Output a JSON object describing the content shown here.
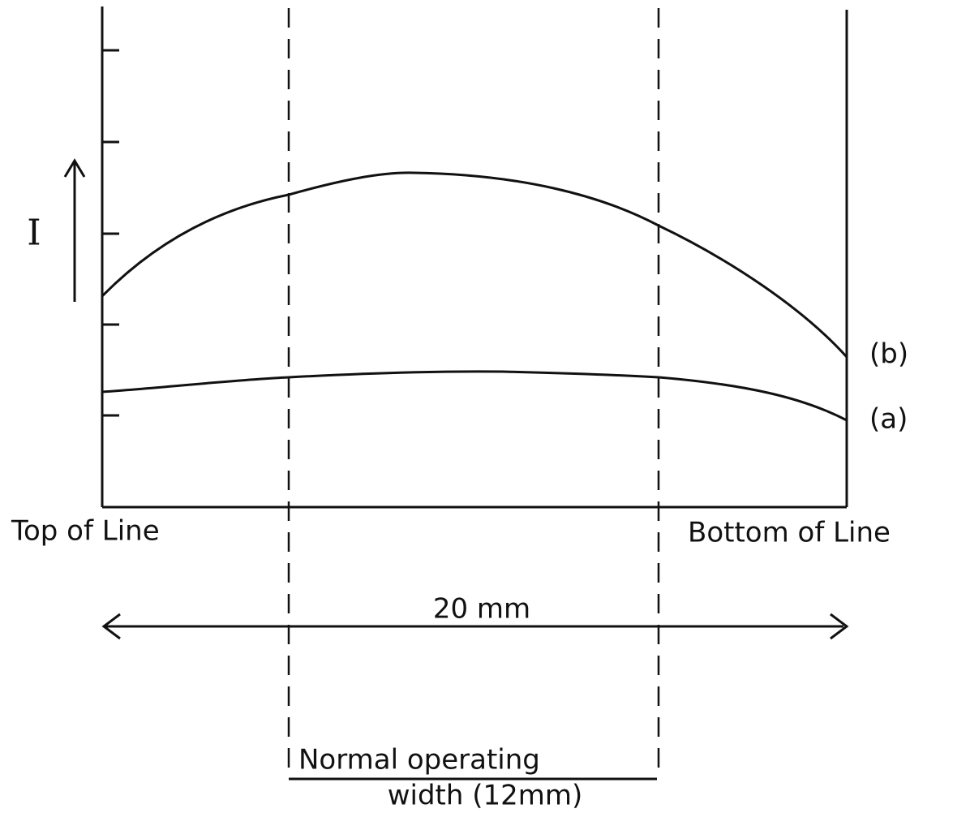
{
  "y_label": "I",
  "curves": [
    {
      "label": "(a)"
    },
    {
      "label": "(b)"
    }
  ],
  "x_labels": {
    "left": "Top of Line",
    "right": "Bottom of Line"
  },
  "span": "20 mm",
  "operating": {
    "line1": "Normal operating",
    "line2": "width (12mm)"
  }
}
